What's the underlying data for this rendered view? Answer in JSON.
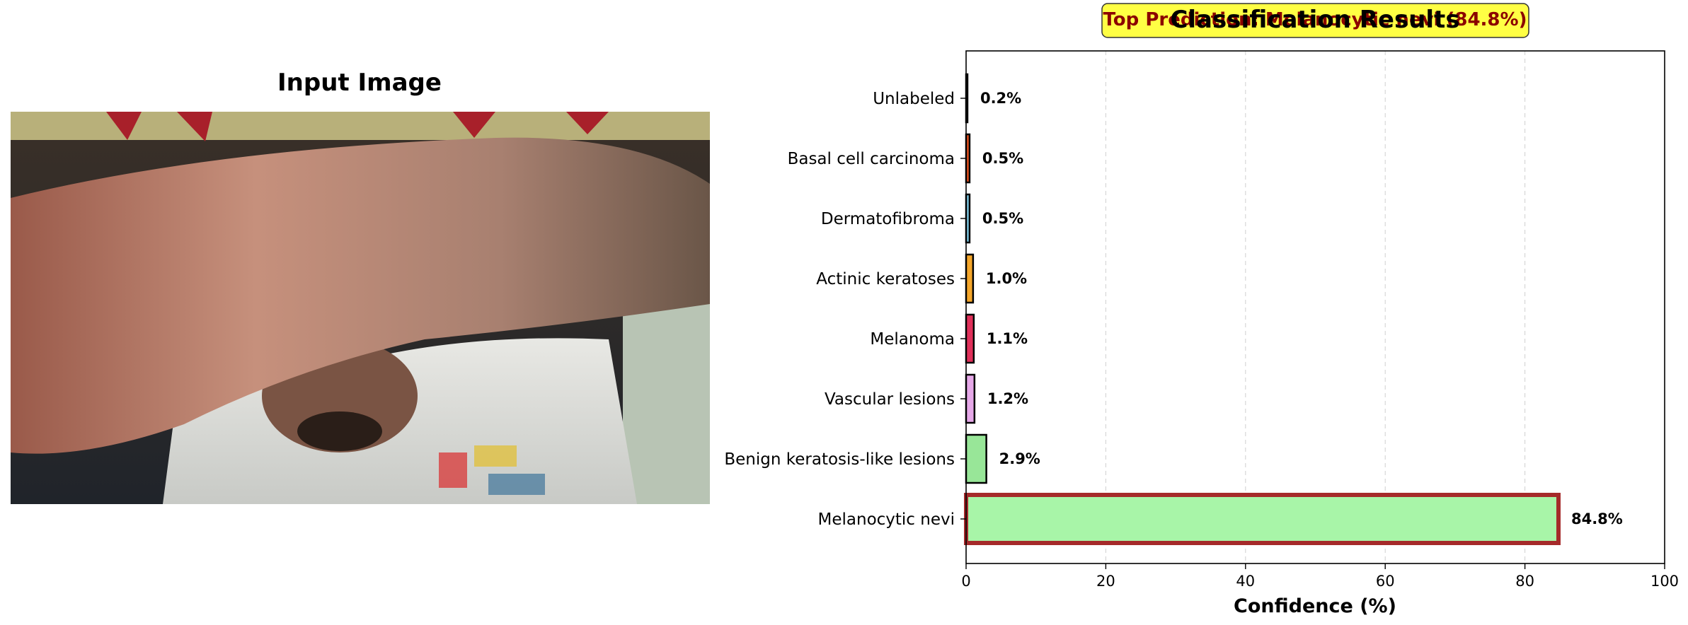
{
  "left_panel": {
    "title": "Input Image",
    "photo_description_icon": "photo-placeholder"
  },
  "chart_data": {
    "type": "bar",
    "orientation": "horizontal",
    "title": "Classification Results",
    "xlabel": "Confidence (%)",
    "ylabel": "",
    "xlim": [
      0,
      100
    ],
    "xticks": [
      0,
      20,
      40,
      60,
      80,
      100
    ],
    "grid": "x-dashed",
    "categories": [
      "Unlabeled",
      "Basal cell carcinoma",
      "Dermatofibroma",
      "Actinic keratoses",
      "Melanoma",
      "Vascular lesions",
      "Benign keratosis-like lesions",
      "Melanocytic nevi"
    ],
    "values": [
      0.2,
      0.5,
      0.5,
      1.0,
      1.1,
      1.2,
      2.9,
      84.8
    ],
    "value_labels": [
      "0.2%",
      "0.5%",
      "0.5%",
      "1.0%",
      "1.1%",
      "1.2%",
      "2.9%",
      "84.8%"
    ],
    "colors": [
      "#2f2f2f",
      "#e8521f",
      "#7ec8e3",
      "#f4a62a",
      "#e0305a",
      "#e6a8e8",
      "#98e698",
      "#a8f5a8"
    ],
    "highlight_index": 7,
    "highlight_edge_color": "#a52a2a",
    "annotation": {
      "text": "Top Prediction: Melanocytic nevi (84.8%)",
      "background": "#ffff44",
      "text_color": "#8b0000"
    }
  }
}
